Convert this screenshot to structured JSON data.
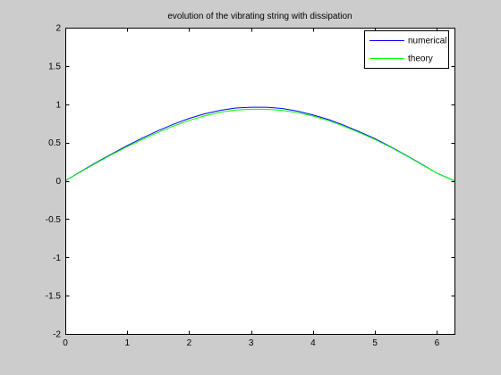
{
  "chart_data": {
    "type": "line",
    "title": "evolution of the vibrating string with dissipation",
    "xlabel": "",
    "ylabel": "",
    "xlim": [
      0,
      6.2832
    ],
    "ylim": [
      -2,
      2
    ],
    "x_ticks": [
      0,
      1,
      2,
      3,
      4,
      5,
      6
    ],
    "x_tick_labels": [
      "0",
      "1",
      "2",
      "3",
      "4",
      "5",
      "6"
    ],
    "y_ticks": [
      -2,
      -1.5,
      -1,
      -0.5,
      0,
      0.5,
      1,
      1.5,
      2
    ],
    "y_tick_labels": [
      "-2",
      "-1.5",
      "-1",
      "-0.5",
      "0",
      "0.5",
      "1",
      "1.5",
      "2"
    ],
    "grid": false,
    "legend_position": "top-right",
    "x": [
      0,
      0.25,
      0.5,
      0.75,
      1.0,
      1.25,
      1.5,
      1.75,
      2.0,
      2.25,
      2.5,
      2.75,
      3.0,
      3.25,
      3.5,
      3.75,
      4.0,
      4.25,
      4.5,
      4.75,
      5.0,
      5.25,
      5.5,
      5.75,
      6.0,
      6.2832
    ],
    "series": [
      {
        "name": "numerical",
        "color": "#0000ff",
        "values": [
          0,
          0.122,
          0.24,
          0.35,
          0.46,
          0.56,
          0.655,
          0.74,
          0.815,
          0.875,
          0.92,
          0.95,
          0.96,
          0.96,
          0.945,
          0.91,
          0.86,
          0.8,
          0.725,
          0.64,
          0.55,
          0.445,
          0.335,
          0.22,
          0.1,
          0
        ]
      },
      {
        "name": "theory",
        "color": "#00ff00",
        "values": [
          0,
          0.117,
          0.233,
          0.343,
          0.447,
          0.542,
          0.633,
          0.716,
          0.788,
          0.848,
          0.895,
          0.924,
          0.935,
          0.935,
          0.92,
          0.89,
          0.845,
          0.785,
          0.712,
          0.63,
          0.54,
          0.44,
          0.33,
          0.215,
          0.1,
          0
        ]
      }
    ]
  },
  "colors": {
    "figure_background": "#cccccc",
    "axes_background": "#ffffff",
    "axis_color": "#000000"
  }
}
